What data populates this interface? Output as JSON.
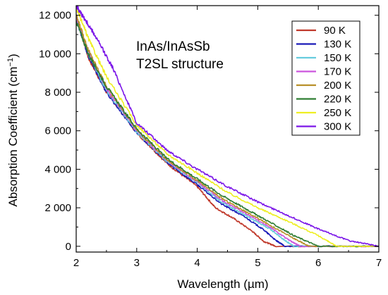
{
  "chart_data": {
    "type": "line",
    "title": "",
    "annotation": [
      "InAs/InAsSb",
      "T2SL structure"
    ],
    "xlabel": "Wavelength (µm)",
    "ylabel": "Absorption Coefficient (cm",
    "ylabel_sup": "−1",
    "ylabel_close": ")",
    "xlim": [
      2,
      7
    ],
    "ylim": [
      -300,
      12500
    ],
    "xticks": [
      2,
      3,
      4,
      5,
      6,
      7
    ],
    "xtick_labels": [
      "2",
      "3",
      "4",
      "5",
      "6",
      "7"
    ],
    "yticks": [
      0,
      2000,
      4000,
      6000,
      8000,
      10000,
      12000
    ],
    "ytick_labels": [
      "0",
      "2 000",
      "4 000",
      "6 000",
      "8 000",
      "10 000",
      "12 000"
    ],
    "legend_position": "top-right",
    "grid": false,
    "series": [
      {
        "name": "90 K",
        "color": "#c0392b",
        "x": [
          2.0,
          2.2,
          2.5,
          3.0,
          3.5,
          4.0,
          4.3,
          4.6,
          4.9,
          5.1,
          5.3,
          7.0
        ],
        "y": [
          12000,
          9800,
          8000,
          5900,
          4300,
          3100,
          2000,
          1450,
          800,
          250,
          0,
          0
        ]
      },
      {
        "name": "130 K",
        "color": "#1a1ab8",
        "x": [
          2.0,
          2.2,
          2.5,
          3.0,
          3.5,
          4.0,
          4.4,
          4.8,
          5.1,
          5.3,
          5.45,
          7.0
        ],
        "y": [
          11800,
          9900,
          8000,
          5900,
          4350,
          3200,
          2200,
          1500,
          850,
          300,
          0,
          0
        ]
      },
      {
        "name": "150 K",
        "color": "#66ccdd",
        "x": [
          2.0,
          2.2,
          2.5,
          3.0,
          3.5,
          4.0,
          4.4,
          4.8,
          5.2,
          5.45,
          5.6,
          7.0
        ],
        "y": [
          11900,
          10000,
          8100,
          5950,
          4400,
          3300,
          2300,
          1600,
          900,
          300,
          0,
          0
        ]
      },
      {
        "name": "170 K",
        "color": "#cc55dd",
        "x": [
          2.0,
          2.2,
          2.5,
          3.0,
          3.5,
          4.0,
          4.4,
          4.8,
          5.2,
          5.5,
          5.7,
          7.0
        ],
        "y": [
          11900,
          10100,
          8200,
          6000,
          4450,
          3350,
          2400,
          1700,
          1000,
          350,
          0,
          0
        ]
      },
      {
        "name": "200 K",
        "color": "#b8902a",
        "x": [
          2.0,
          2.2,
          2.5,
          3.0,
          3.5,
          4.0,
          4.4,
          4.8,
          5.2,
          5.6,
          5.85,
          7.0
        ],
        "y": [
          12000,
          10200,
          8300,
          6050,
          4500,
          3400,
          2500,
          1800,
          1100,
          400,
          0,
          0
        ]
      },
      {
        "name": "220 K",
        "color": "#2e7d32",
        "x": [
          2.0,
          2.2,
          2.5,
          3.0,
          3.5,
          4.0,
          4.4,
          4.8,
          5.2,
          5.6,
          6.0,
          7.0
        ],
        "y": [
          11700,
          10000,
          8300,
          6100,
          4550,
          3500,
          2650,
          1950,
          1250,
          550,
          0,
          0
        ]
      },
      {
        "name": "250 K",
        "color": "#eeee22",
        "x": [
          2.0,
          2.2,
          2.5,
          3.0,
          3.5,
          4.0,
          4.5,
          5.0,
          5.5,
          6.0,
          6.3,
          7.0
        ],
        "y": [
          12400,
          10800,
          8800,
          6300,
          4800,
          3800,
          2800,
          2000,
          1300,
          550,
          0,
          0
        ]
      },
      {
        "name": "300 K",
        "color": "#7b16e8",
        "x": [
          2.0,
          2.1,
          2.3,
          2.6,
          3.0,
          3.5,
          4.0,
          4.5,
          5.0,
          5.5,
          6.0,
          6.5,
          7.0
        ],
        "y": [
          12500,
          12000,
          11000,
          9300,
          6400,
          5000,
          4000,
          3100,
          2300,
          1600,
          900,
          300,
          0
        ]
      }
    ]
  }
}
